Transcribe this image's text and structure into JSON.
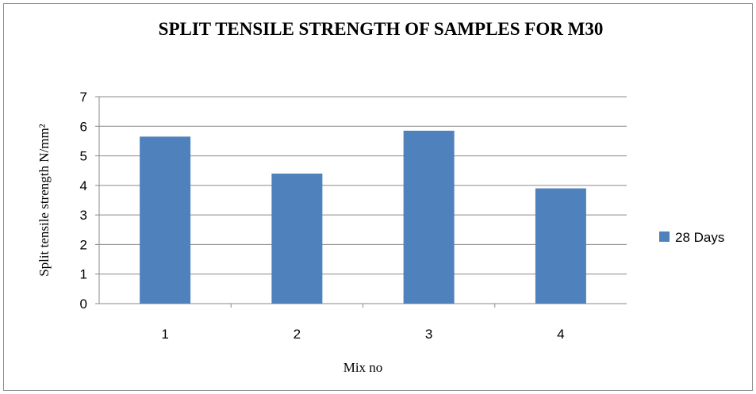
{
  "chart_data": {
    "type": "bar",
    "title": "SPLIT TENSILE STRENGTH OF SAMPLES FOR M30",
    "xlabel": "Mix no",
    "ylabel": "Split tensile strength  N/mm²",
    "categories": [
      "1",
      "2",
      "3",
      "4"
    ],
    "series": [
      {
        "name": "28 Days",
        "values": [
          5.65,
          4.4,
          5.85,
          3.9
        ],
        "color": "#4f81bd"
      }
    ],
    "ylim": [
      0,
      7
    ],
    "yticks": [
      0,
      1,
      2,
      3,
      4,
      5,
      6,
      7
    ],
    "grid": true,
    "legend": "right"
  }
}
